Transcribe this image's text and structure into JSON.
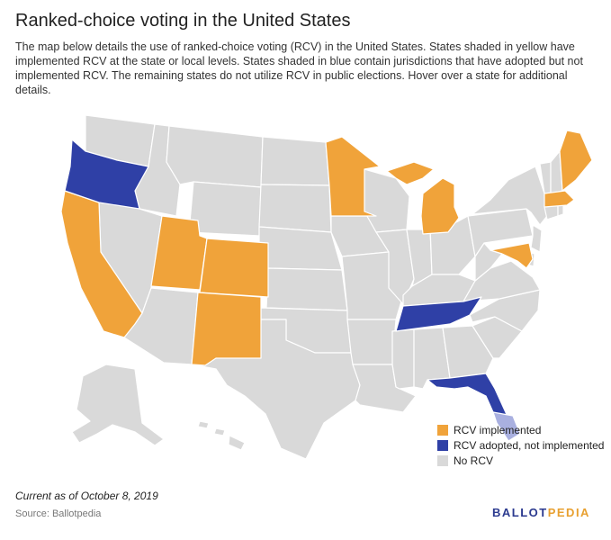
{
  "title": "Ranked-choice voting in the United States",
  "description": "The map below details the use of ranked-choice voting (RCV) in the United States. States shaded in yellow have implemented RCV at the state or local levels. States shaded in blue contain jurisdictions that have adopted but not implemented RCV. The remaining states do not utilize RCV in public elections. Hover over a state for additional details.",
  "colors": {
    "implemented": "#f0a33a",
    "adopted": "#2f40a6",
    "none": "#d9d9d9"
  },
  "legend": [
    {
      "label": "RCV implemented",
      "color": "#f0a33a"
    },
    {
      "label": "RCV adopted, not implemented",
      "color": "#2f40a6"
    },
    {
      "label": "No RCV",
      "color": "#d9d9d9"
    }
  ],
  "states": {
    "implemented": [
      "California",
      "Utah",
      "Colorado",
      "New Mexico",
      "Minnesota",
      "Michigan",
      "Maryland",
      "Massachusetts",
      "Maine"
    ],
    "adopted": [
      "Oregon",
      "Tennessee",
      "Florida"
    ]
  },
  "note": "Current as of October 8, 2019",
  "source": "Source: Ballotpedia",
  "logo": {
    "part1": "BALLOT",
    "part2": "PEDIA"
  }
}
